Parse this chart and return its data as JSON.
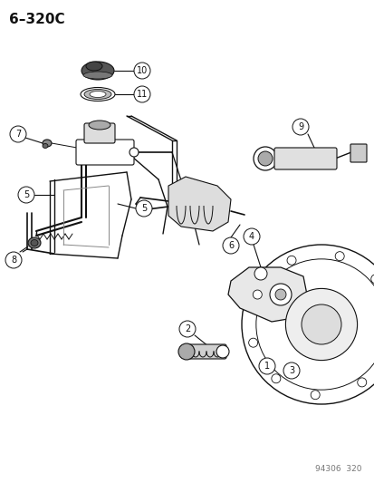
{
  "title": "6–320C",
  "footer": "94306  320",
  "bg_color": "#ffffff",
  "fg_color": "#111111",
  "figsize": [
    4.14,
    5.33
  ],
  "dpi": 100,
  "title_fontsize": 11,
  "footer_fontsize": 6.5,
  "label_r": 0.022
}
